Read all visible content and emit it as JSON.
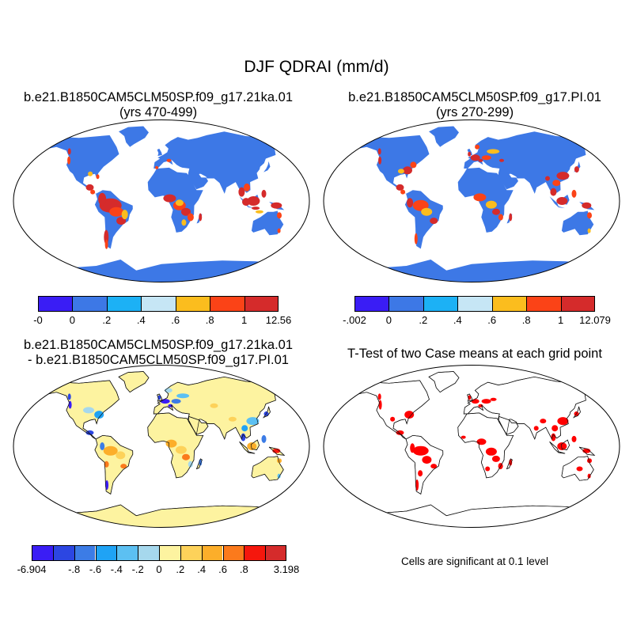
{
  "figure": {
    "title": "DJF QDRAI (mm/d)",
    "note": "Cells are significant at 0.1 level"
  },
  "panels": [
    {
      "id": "case1",
      "title_line1": "b.e21.B1850CAM5CLM50SP.f09_g17.21ka.01",
      "title_line2": "(yrs 470-499)",
      "field": "absolute"
    },
    {
      "id": "case2",
      "title_line1": "b.e21.B1850CAM5CLM50SP.f09_g17.PI.01",
      "title_line2": "(yrs 270-299)",
      "field": "absolute"
    },
    {
      "id": "diff",
      "title_line1": "b.e21.B1850CAM5CLM50SP.f09_g17.21ka.01",
      "title_line2": "- b.e21.B1850CAM5CLM50SP.f09_g17.PI.01",
      "field": "difference"
    },
    {
      "id": "ttest",
      "title_line1": "T-Test of two Case means at each grid point",
      "title_line2": "",
      "field": "significance",
      "significance_color": "#ff0000"
    }
  ],
  "colorbars": [
    {
      "id": "cb1",
      "colors": [
        "#3a1df5",
        "#3d78e6",
        "#1cb1f5",
        "#c6e6f5",
        "#fbbd1e",
        "#fb4317",
        "#d52b2b"
      ],
      "tick_labels": [
        "-0",
        "0",
        ".2",
        ".4",
        ".6",
        ".8",
        "1",
        "12.56"
      ]
    },
    {
      "id": "cb2",
      "colors": [
        "#3a1df5",
        "#3d78e6",
        "#1cb1f5",
        "#c6e6f5",
        "#fbbd1e",
        "#fb4317",
        "#d52b2b"
      ],
      "tick_labels": [
        "-.002",
        "0",
        ".2",
        ".4",
        ".6",
        ".8",
        "1",
        "12.079"
      ]
    },
    {
      "id": "cb3",
      "colors": [
        "#3a1df5",
        "#2c46e2",
        "#3c7ce6",
        "#1fa3f5",
        "#5cc0f2",
        "#a6d8ed",
        "#fdf3a0",
        "#fdd25a",
        "#fcae2a",
        "#fb7a1c",
        "#f5170d",
        "#d52b2b"
      ],
      "tick_labels": [
        "-6.904",
        "",
        "-.8",
        "-.6",
        "-.4",
        "-.2",
        "0",
        ".2",
        ".4",
        ".6",
        ".8",
        "",
        "3.198"
      ]
    }
  ]
}
